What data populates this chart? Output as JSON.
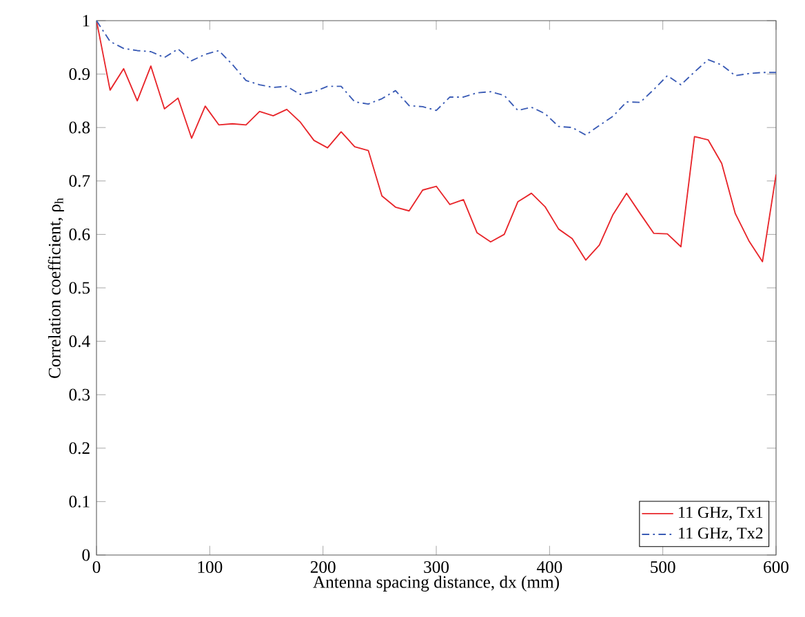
{
  "chart_data": {
    "type": "line",
    "xlabel": "Antenna spacing distance, dx (mm)",
    "ylabel": "Correlation coefficient, ρ$_{h}$",
    "x": [
      0,
      12,
      24,
      36,
      48,
      60,
      72,
      84,
      96,
      108,
      120,
      132,
      144,
      156,
      168,
      180,
      192,
      204,
      216,
      228,
      240,
      252,
      264,
      276,
      288,
      300,
      312,
      324,
      336,
      348,
      360,
      372,
      384,
      396,
      408,
      420,
      432,
      444,
      456,
      468,
      480,
      492,
      504,
      516,
      528,
      540,
      552,
      564,
      576,
      588,
      600
    ],
    "series": [
      {
        "name": "11 GHz, Tx1",
        "color": "#e8262b",
        "line_style": "solid",
        "values": [
          1.0,
          0.87,
          0.91,
          0.85,
          0.915,
          0.835,
          0.855,
          0.78,
          0.84,
          0.805,
          0.807,
          0.805,
          0.83,
          0.822,
          0.834,
          0.81,
          0.776,
          0.762,
          0.792,
          0.764,
          0.757,
          0.672,
          0.651,
          0.644,
          0.683,
          0.69,
          0.656,
          0.665,
          0.603,
          0.586,
          0.6,
          0.661,
          0.677,
          0.652,
          0.61,
          0.592,
          0.552,
          0.58,
          0.637,
          0.677,
          0.639,
          0.602,
          0.601,
          0.577,
          0.783,
          0.777,
          0.733,
          0.639,
          0.588,
          0.549,
          0.712
        ]
      },
      {
        "name": "11 GHz, Tx2",
        "color": "#3a5bb5",
        "line_style": "dashdot",
        "values": [
          1.0,
          0.961,
          0.948,
          0.944,
          0.942,
          0.931,
          0.947,
          0.925,
          0.937,
          0.944,
          0.918,
          0.888,
          0.88,
          0.875,
          0.877,
          0.862,
          0.867,
          0.877,
          0.877,
          0.848,
          0.844,
          0.854,
          0.869,
          0.841,
          0.839,
          0.832,
          0.857,
          0.857,
          0.865,
          0.867,
          0.86,
          0.832,
          0.838,
          0.826,
          0.802,
          0.8,
          0.786,
          0.804,
          0.821,
          0.848,
          0.847,
          0.871,
          0.897,
          0.88,
          0.904,
          0.927,
          0.917,
          0.897,
          0.901,
          0.903,
          0.903
        ]
      }
    ],
    "xlim": [
      0,
      600
    ],
    "ylim": [
      0,
      1
    ],
    "xticks": [
      0,
      100,
      200,
      300,
      400,
      500,
      600
    ],
    "yticks": [
      0,
      0.1,
      0.2,
      0.3,
      0.4,
      0.5,
      0.6,
      0.7,
      0.8,
      0.9,
      1
    ],
    "grid": false,
    "legend": "bottom right",
    "marker": "none"
  }
}
